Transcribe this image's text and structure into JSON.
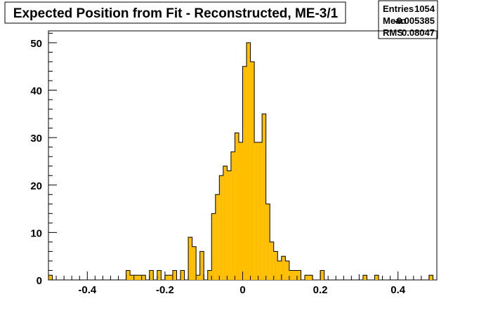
{
  "chart_data": {
    "type": "bar",
    "title": "Expected Position from Fit - Reconstructed, ME-3/1",
    "xlabel": "",
    "ylabel": "",
    "xlim": [
      -0.5,
      0.5
    ],
    "ylim": [
      0,
      52.5
    ],
    "x_ticks": [
      -0.4,
      -0.2,
      0,
      0.2,
      0.4
    ],
    "x_tick_labels": [
      "-0.4",
      "-0.2",
      "0",
      "0.2",
      "0.4"
    ],
    "y_ticks": [
      0,
      10,
      20,
      30,
      40,
      50
    ],
    "y_tick_labels": [
      "0",
      "10",
      "20",
      "30",
      "40",
      "50"
    ],
    "bin_width": 0.01,
    "bin_start": -0.5,
    "values": [
      1,
      0,
      0,
      0,
      0,
      0,
      0,
      0,
      0,
      0,
      0,
      0,
      0,
      0,
      0,
      0,
      0,
      0,
      0,
      0,
      2,
      1,
      1,
      1,
      1,
      0,
      2,
      0,
      2,
      0,
      1,
      1,
      2,
      0,
      2,
      0,
      9,
      7,
      1,
      6,
      0,
      2,
      14,
      18,
      22,
      24,
      23,
      27,
      31,
      29,
      45,
      50,
      46,
      29,
      29,
      35,
      16,
      8,
      6,
      4,
      5,
      4,
      2,
      2,
      2,
      0,
      1,
      1,
      0,
      0,
      2,
      0,
      0,
      0,
      0,
      0,
      0,
      0,
      0,
      0,
      0,
      1,
      0,
      0,
      1,
      0,
      0,
      0,
      0,
      0,
      0,
      0,
      0,
      0,
      0,
      0,
      0,
      0,
      1,
      0
    ],
    "fill_color": "#ffbf00",
    "edge_color": "#000000",
    "stats": {
      "rows": [
        {
          "label": "Entries",
          "value": "1054"
        },
        {
          "label": "Mean",
          "value": "-0.005385"
        },
        {
          "label": "RMS",
          "value": "0.08047"
        }
      ]
    }
  }
}
